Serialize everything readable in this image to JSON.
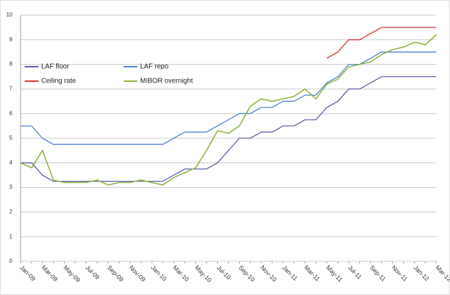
{
  "chart_data": {
    "type": "line",
    "categories": [
      "Jan-09",
      null,
      "Mar-09",
      null,
      "May-09",
      null,
      "Jul-09",
      null,
      "Sep-09",
      null,
      "Nov-09",
      null,
      "Jan-10",
      null,
      "Mar-10",
      null,
      "May-10",
      null,
      "Jul-10",
      null,
      "Sep-10",
      null,
      "Nov-10",
      null,
      "Jan-11",
      null,
      "Mar-11",
      null,
      "May-11",
      null,
      "Jul-11",
      null,
      "Sep-11",
      null,
      "Nov-11",
      null,
      "Jan-12",
      null,
      "Mar-12"
    ],
    "series": [
      {
        "name": "LAF floor",
        "color": "#5a5aa8",
        "values": [
          4,
          4,
          3.5,
          3.25,
          3.25,
          3.25,
          3.25,
          3.25,
          3.25,
          3.25,
          3.25,
          3.25,
          3.25,
          3.25,
          3.5,
          3.75,
          3.75,
          3.75,
          4.0,
          4.5,
          5.0,
          5.0,
          5.25,
          5.25,
          5.5,
          5.5,
          5.75,
          5.75,
          6.25,
          6.5,
          7.0,
          7.0,
          7.25,
          7.5,
          7.5,
          7.5,
          7.5,
          7.5,
          7.5
        ]
      },
      {
        "name": "LAF repo",
        "color": "#4a7fd4",
        "values": [
          5.5,
          5.5,
          5.0,
          4.75,
          4.75,
          4.75,
          4.75,
          4.75,
          4.75,
          4.75,
          4.75,
          4.75,
          4.75,
          4.75,
          5.0,
          5.25,
          5.25,
          5.25,
          5.5,
          5.75,
          6.0,
          6.0,
          6.25,
          6.25,
          6.5,
          6.5,
          6.75,
          6.75,
          7.25,
          7.5,
          8.0,
          8.0,
          8.25,
          8.5,
          8.5,
          8.5,
          8.5,
          8.5,
          8.5
        ]
      },
      {
        "name": "Ceiling rate",
        "color": "#d03030",
        "values": [
          null,
          null,
          null,
          null,
          null,
          null,
          null,
          null,
          null,
          null,
          null,
          null,
          null,
          null,
          null,
          null,
          null,
          null,
          null,
          null,
          null,
          null,
          null,
          null,
          null,
          null,
          null,
          null,
          8.25,
          8.5,
          9.0,
          9.0,
          9.25,
          9.5,
          9.5,
          9.5,
          9.5,
          9.5,
          9.5
        ]
      },
      {
        "name": "MIBOR overnight",
        "color": "#8db33a",
        "values": [
          4.0,
          3.8,
          4.5,
          3.3,
          3.2,
          3.2,
          3.2,
          3.3,
          3.1,
          3.2,
          3.2,
          3.3,
          3.2,
          3.1,
          3.4,
          3.6,
          3.8,
          4.5,
          5.3,
          5.2,
          5.5,
          6.3,
          6.6,
          6.5,
          6.6,
          6.7,
          7.0,
          6.6,
          7.2,
          7.4,
          7.9,
          8.0,
          8.1,
          8.4,
          8.6,
          8.7,
          8.9,
          8.8,
          9.2
        ]
      }
    ],
    "ylim": [
      0,
      10
    ],
    "yticks": [
      0,
      1,
      2,
      3,
      4,
      5,
      6,
      7,
      8,
      9,
      10
    ],
    "grid": true,
    "legend": "top-left"
  }
}
